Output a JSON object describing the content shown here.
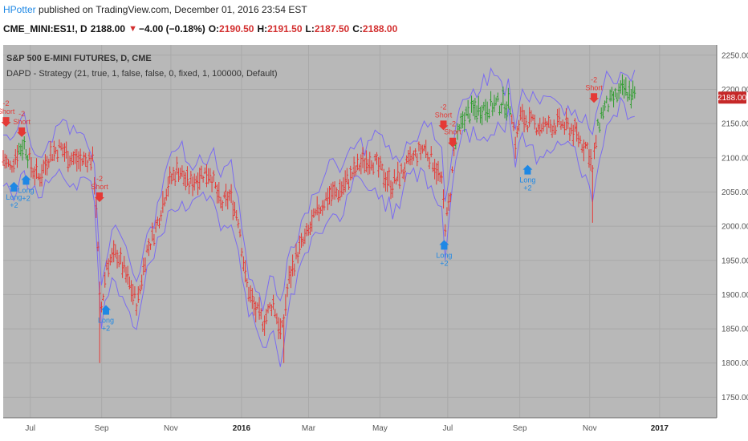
{
  "header": {
    "author": "HPotter",
    "published_text": "published on TradingView.com, December 01, 2016 23:54 EST"
  },
  "ticker": {
    "symbol": "CME_MINI:ES1!, D",
    "last": "2188.00",
    "change": "−4.00 (−0.18%)",
    "open_label": "O:",
    "open": "2190.50",
    "high_label": "H:",
    "high": "2191.50",
    "low_label": "L:",
    "low": "2187.50",
    "close_label": "C:",
    "close": "2188.00"
  },
  "colors": {
    "plot_bg": "#b8b8b8",
    "grid": "#a9a9a9",
    "band": "#7b6cf0",
    "bar_down": "#e53935",
    "bar_up": "#2e9d2e",
    "short": "#e53935",
    "long": "#1e88e5",
    "price_tag": "#c62828"
  },
  "chart_data": {
    "type": "ohlc",
    "title": "S&P 500 E-MINI FUTURES, D, CME",
    "subtitle": "DAPD - Strategy (21, true, 1, false, false, 0, fixed, 1, 100000, Default)",
    "price_tag": "2188.00",
    "ylim": [
      1720,
      2265
    ],
    "yticks": [
      1750,
      1800,
      1850,
      1900,
      1950,
      2000,
      2050,
      2100,
      2150,
      2200,
      2250
    ],
    "ytick_labels": [
      "1750.00",
      "1800.00",
      "1850.00",
      "1900.00",
      "1950.00",
      "2000.00",
      "2050.00",
      "2100.00",
      "2150.00",
      "2200.00",
      "2250.00"
    ],
    "xticks": [
      {
        "label": "Jul",
        "t": 0.038,
        "bold": false
      },
      {
        "label": "Sep",
        "t": 0.138,
        "bold": false
      },
      {
        "label": "Nov",
        "t": 0.235,
        "bold": false
      },
      {
        "label": "2016",
        "t": 0.334,
        "bold": true
      },
      {
        "label": "Mar",
        "t": 0.428,
        "bold": false
      },
      {
        "label": "May",
        "t": 0.528,
        "bold": false
      },
      {
        "label": "Jul",
        "t": 0.623,
        "bold": false
      },
      {
        "label": "Sep",
        "t": 0.724,
        "bold": false
      },
      {
        "label": "Nov",
        "t": 0.822,
        "bold": false
      },
      {
        "label": "2017",
        "t": 0.92,
        "bold": true
      }
    ],
    "data_end_t": 0.885,
    "path": [
      [
        0.0,
        2100
      ],
      [
        0.01,
        2085
      ],
      [
        0.02,
        2110
      ],
      [
        0.03,
        2120
      ],
      [
        0.04,
        2085
      ],
      [
        0.05,
        2070
      ],
      [
        0.065,
        2105
      ],
      [
        0.08,
        2115
      ],
      [
        0.095,
        2100
      ],
      [
        0.11,
        2095
      ],
      [
        0.125,
        2100
      ],
      [
        0.13,
        2040
      ],
      [
        0.135,
        1900
      ],
      [
        0.138,
        1880
      ],
      [
        0.145,
        1945
      ],
      [
        0.16,
        1960
      ],
      [
        0.175,
        1920
      ],
      [
        0.188,
        1885
      ],
      [
        0.2,
        1960
      ],
      [
        0.215,
        2000
      ],
      [
        0.23,
        2060
      ],
      [
        0.245,
        2085
      ],
      [
        0.26,
        2060
      ],
      [
        0.275,
        2075
      ],
      [
        0.29,
        2080
      ],
      [
        0.305,
        2030
      ],
      [
        0.318,
        2045
      ],
      [
        0.33,
        2010
      ],
      [
        0.34,
        1920
      ],
      [
        0.352,
        1880
      ],
      [
        0.365,
        1860
      ],
      [
        0.378,
        1890
      ],
      [
        0.39,
        1840
      ],
      [
        0.4,
        1920
      ],
      [
        0.412,
        1960
      ],
      [
        0.425,
        1985
      ],
      [
        0.44,
        2020
      ],
      [
        0.455,
        2045
      ],
      [
        0.47,
        2050
      ],
      [
        0.485,
        2070
      ],
      [
        0.5,
        2090
      ],
      [
        0.515,
        2100
      ],
      [
        0.53,
        2080
      ],
      [
        0.545,
        2060
      ],
      [
        0.56,
        2080
      ],
      [
        0.575,
        2100
      ],
      [
        0.59,
        2115
      ],
      [
        0.605,
        2090
      ],
      [
        0.615,
        2060
      ],
      [
        0.62,
        2000
      ],
      [
        0.626,
        2040
      ],
      [
        0.632,
        2110
      ],
      [
        0.645,
        2160
      ],
      [
        0.66,
        2170
      ],
      [
        0.68,
        2175
      ],
      [
        0.7,
        2180
      ],
      [
        0.712,
        2175
      ],
      [
        0.718,
        2120
      ],
      [
        0.725,
        2160
      ],
      [
        0.74,
        2150
      ],
      [
        0.76,
        2145
      ],
      [
        0.78,
        2150
      ],
      [
        0.8,
        2140
      ],
      [
        0.812,
        2120
      ],
      [
        0.82,
        2115
      ],
      [
        0.826,
        2080
      ],
      [
        0.832,
        2135
      ],
      [
        0.84,
        2170
      ],
      [
        0.855,
        2185
      ],
      [
        0.87,
        2200
      ],
      [
        0.885,
        2190
      ]
    ],
    "green_ranges": [
      [
        0.02,
        0.036
      ],
      [
        0.632,
        0.712
      ],
      [
        0.832,
        0.885
      ]
    ],
    "spikes": [
      {
        "t": 0.136,
        "low": 1800
      },
      {
        "t": 0.62,
        "low": 1985
      },
      {
        "t": 0.826,
        "low": 2005
      },
      {
        "t": 0.393,
        "low": 1800
      }
    ],
    "signals": [
      {
        "t": 0.004,
        "type": "short",
        "label": "Short",
        "qty": "-2",
        "price": 2150
      },
      {
        "t": 0.026,
        "type": "short",
        "label": "Short",
        "qty": "-2",
        "price": 2135
      },
      {
        "t": 0.015,
        "type": "long",
        "label": "Long",
        "qty": "+2",
        "price": 2060
      },
      {
        "t": 0.032,
        "type": "long",
        "label": "Long",
        "qty": "+2",
        "price": 2070
      },
      {
        "t": 0.135,
        "type": "short",
        "label": "Short",
        "qty": "-2",
        "price": 2040
      },
      {
        "t": 0.144,
        "type": "long",
        "label": "Long",
        "qty": "+2",
        "price": 1880
      },
      {
        "t": 0.617,
        "type": "short",
        "label": "Short",
        "qty": "-2",
        "price": 2145
      },
      {
        "t": 0.63,
        "type": "short",
        "label": "Short",
        "qty": "-2",
        "price": 2120
      },
      {
        "t": 0.618,
        "type": "long",
        "label": "Long",
        "qty": "+2",
        "price": 1975
      },
      {
        "t": 0.735,
        "type": "long",
        "label": "Long",
        "qty": "+2",
        "price": 2085
      },
      {
        "t": 0.828,
        "type": "short",
        "label": "Short",
        "qty": "-2",
        "price": 2185
      }
    ]
  }
}
